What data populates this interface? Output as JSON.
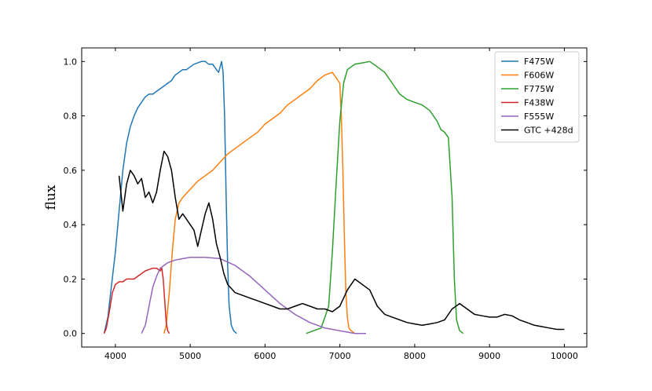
{
  "chart_data": {
    "type": "line",
    "title": "",
    "xlabel": "",
    "ylabel": "flux",
    "xlim": [
      3550,
      10300
    ],
    "ylim": [
      -0.05,
      1.05
    ],
    "x_ticks": [
      4000,
      5000,
      6000,
      7000,
      8000,
      9000,
      10000
    ],
    "y_ticks": [
      0.0,
      0.2,
      0.4,
      0.6,
      0.8,
      1.0
    ],
    "grid": false,
    "legend_position": "top-right",
    "series": [
      {
        "name": "F475W",
        "color": "#1f77b4",
        "x": [
          3850,
          3900,
          3950,
          4000,
          4050,
          4100,
          4150,
          4200,
          4250,
          4300,
          4350,
          4400,
          4450,
          4500,
          4550,
          4600,
          4650,
          4700,
          4750,
          4800,
          4850,
          4900,
          4950,
          5000,
          5050,
          5100,
          5150,
          5200,
          5250,
          5300,
          5350,
          5380,
          5400,
          5420,
          5440,
          5460,
          5480,
          5500,
          5520,
          5550,
          5580,
          5620
        ],
        "y": [
          0.0,
          0.06,
          0.18,
          0.3,
          0.45,
          0.6,
          0.7,
          0.76,
          0.8,
          0.83,
          0.85,
          0.87,
          0.88,
          0.88,
          0.89,
          0.9,
          0.91,
          0.92,
          0.93,
          0.95,
          0.96,
          0.97,
          0.97,
          0.98,
          0.99,
          0.995,
          1.0,
          1.0,
          0.99,
          0.99,
          0.97,
          0.96,
          0.98,
          1.0,
          0.96,
          0.8,
          0.5,
          0.25,
          0.1,
          0.03,
          0.01,
          0.0
        ]
      },
      {
        "name": "F606W",
        "color": "#ff7f0e",
        "x": [
          4650,
          4680,
          4720,
          4760,
          4800,
          4850,
          4900,
          5000,
          5100,
          5200,
          5300,
          5400,
          5500,
          5600,
          5700,
          5800,
          5900,
          6000,
          6100,
          6200,
          6300,
          6400,
          6500,
          6600,
          6700,
          6800,
          6900,
          6950,
          7000,
          7020,
          7040,
          7060,
          7080,
          7100,
          7120,
          7150,
          7200
        ],
        "y": [
          0.0,
          0.03,
          0.15,
          0.3,
          0.42,
          0.48,
          0.5,
          0.53,
          0.56,
          0.58,
          0.6,
          0.63,
          0.66,
          0.68,
          0.7,
          0.72,
          0.74,
          0.77,
          0.79,
          0.81,
          0.84,
          0.86,
          0.88,
          0.9,
          0.93,
          0.95,
          0.96,
          0.94,
          0.92,
          0.8,
          0.6,
          0.35,
          0.15,
          0.06,
          0.02,
          0.01,
          0.0
        ]
      },
      {
        "name": "F775W",
        "color": "#2ca02c",
        "x": [
          6550,
          6650,
          6750,
          6850,
          6900,
          6950,
          7000,
          7050,
          7100,
          7200,
          7300,
          7400,
          7500,
          7600,
          7700,
          7800,
          7900,
          8000,
          8100,
          8200,
          8300,
          8350,
          8400,
          8450,
          8500,
          8530,
          8560,
          8600,
          8650
        ],
        "y": [
          0.0,
          0.01,
          0.02,
          0.1,
          0.3,
          0.55,
          0.78,
          0.92,
          0.97,
          0.99,
          0.995,
          1.0,
          0.98,
          0.96,
          0.92,
          0.88,
          0.86,
          0.85,
          0.84,
          0.82,
          0.78,
          0.75,
          0.74,
          0.72,
          0.5,
          0.2,
          0.05,
          0.01,
          0.0
        ]
      },
      {
        "name": "F438W",
        "color": "#d62728",
        "x": [
          3850,
          3880,
          3920,
          3960,
          4000,
          4050,
          4100,
          4150,
          4200,
          4250,
          4300,
          4350,
          4400,
          4450,
          4500,
          4550,
          4600,
          4620,
          4640,
          4660,
          4680,
          4700,
          4720
        ],
        "y": [
          0.0,
          0.02,
          0.08,
          0.15,
          0.18,
          0.19,
          0.19,
          0.2,
          0.2,
          0.2,
          0.21,
          0.22,
          0.23,
          0.235,
          0.24,
          0.24,
          0.23,
          0.24,
          0.2,
          0.12,
          0.04,
          0.01,
          0.0
        ]
      },
      {
        "name": "F555W",
        "color": "#9467bd",
        "x": [
          4350,
          4400,
          4450,
          4500,
          4550,
          4600,
          4700,
          4800,
          4900,
          5000,
          5200,
          5400,
          5600,
          5800,
          6000,
          6200,
          6400,
          6600,
          6800,
          7000,
          7200,
          7350
        ],
        "y": [
          0.0,
          0.03,
          0.1,
          0.17,
          0.21,
          0.24,
          0.26,
          0.27,
          0.275,
          0.28,
          0.28,
          0.275,
          0.25,
          0.21,
          0.16,
          0.11,
          0.07,
          0.04,
          0.02,
          0.01,
          0.0,
          0.0
        ]
      },
      {
        "name": "GTC +428d",
        "color": "#000000",
        "x": [
          4050,
          4100,
          4150,
          4200,
          4250,
          4300,
          4350,
          4400,
          4450,
          4500,
          4550,
          4600,
          4650,
          4700,
          4750,
          4800,
          4850,
          4900,
          4950,
          5000,
          5050,
          5100,
          5150,
          5200,
          5250,
          5300,
          5350,
          5400,
          5450,
          5500,
          5600,
          5700,
          5800,
          5900,
          6000,
          6100,
          6200,
          6300,
          6400,
          6500,
          6600,
          6700,
          6800,
          6900,
          7000,
          7100,
          7200,
          7300,
          7400,
          7500,
          7600,
          7700,
          7800,
          7900,
          8000,
          8100,
          8200,
          8300,
          8400,
          8500,
          8600,
          8700,
          8800,
          8900,
          9000,
          9100,
          9200,
          9300,
          9400,
          9500,
          9600,
          9700,
          9800,
          9900,
          10000
        ],
        "y": [
          0.58,
          0.45,
          0.55,
          0.6,
          0.58,
          0.55,
          0.57,
          0.5,
          0.52,
          0.48,
          0.52,
          0.6,
          0.67,
          0.65,
          0.6,
          0.5,
          0.42,
          0.44,
          0.42,
          0.4,
          0.38,
          0.32,
          0.38,
          0.44,
          0.48,
          0.42,
          0.33,
          0.28,
          0.22,
          0.18,
          0.15,
          0.14,
          0.13,
          0.12,
          0.11,
          0.1,
          0.09,
          0.09,
          0.1,
          0.11,
          0.1,
          0.09,
          0.09,
          0.08,
          0.1,
          0.16,
          0.2,
          0.18,
          0.16,
          0.1,
          0.07,
          0.06,
          0.05,
          0.04,
          0.035,
          0.03,
          0.035,
          0.04,
          0.05,
          0.09,
          0.11,
          0.09,
          0.07,
          0.065,
          0.06,
          0.06,
          0.07,
          0.065,
          0.05,
          0.04,
          0.03,
          0.025,
          0.02,
          0.015,
          0.015
        ]
      }
    ]
  }
}
